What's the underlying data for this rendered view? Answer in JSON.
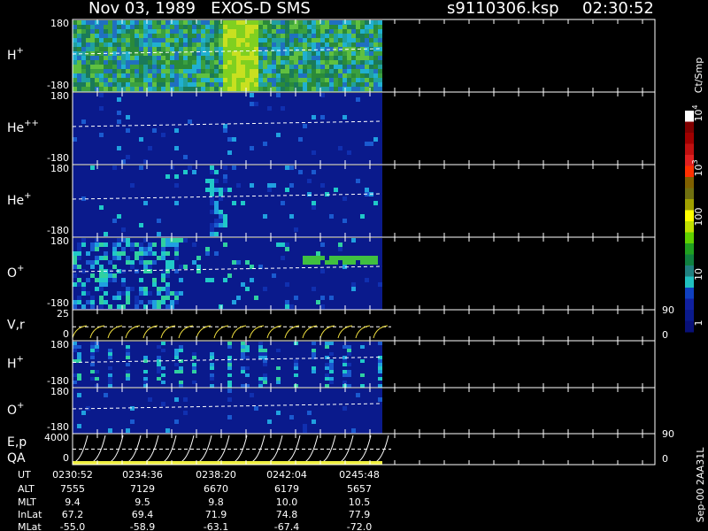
{
  "header": {
    "title": "Nov 03, 1989   EXOS-D SMS",
    "file": "s9110306.ksp",
    "time": "02:30:52"
  },
  "panels": [
    {
      "label": "H",
      "charge": "+",
      "top": "180",
      "bottom": "-180"
    },
    {
      "label": "He",
      "charge": "++",
      "top": "180",
      "bottom": "-180"
    },
    {
      "label": "He",
      "charge": "+",
      "top": "180",
      "bottom": "-180"
    },
    {
      "label": "O",
      "charge": "+",
      "top": "180",
      "bottom": "-180"
    },
    {
      "label": "V,r",
      "top": "25",
      "bottom": "0",
      "right_top": "90",
      "right_bottom": "0"
    },
    {
      "label": "H",
      "charge": "+",
      "top": "180",
      "bottom": "-180"
    },
    {
      "label": "O",
      "charge": "+",
      "top": "180",
      "bottom": "-180"
    },
    {
      "label": "E,p",
      "extra": "QA",
      "top": "4000",
      "bottom": "0",
      "right_top": "90",
      "right_bottom": "0"
    }
  ],
  "table": {
    "rows": [
      {
        "label": "UT",
        "values": [
          "0230:52",
          "0234:36",
          "0238:20",
          "0242:04",
          "0245:48"
        ]
      },
      {
        "label": "ALT",
        "values": [
          "7555",
          "7129",
          "6670",
          "6179",
          "5657"
        ]
      },
      {
        "label": "MLT",
        "values": [
          "9.4",
          "9.5",
          "9.8",
          "10.0",
          "10.5"
        ]
      },
      {
        "label": "InLat",
        "values": [
          "67.2",
          "69.4",
          "71.9",
          "74.8",
          "77.9"
        ]
      },
      {
        "label": "MLat",
        "values": [
          "-55.0",
          "-58.9",
          "-63.1",
          "-67.4",
          "-72.0"
        ]
      }
    ]
  },
  "colorbar": {
    "title": "Ct/Smp",
    "labels": [
      {
        "base": "10",
        "exp": "4"
      },
      {
        "base": "10",
        "exp": "3"
      },
      {
        "text": "100"
      },
      {
        "text": "10"
      },
      {
        "text": "1"
      }
    ]
  },
  "footer": "Sep-00  2AA31L"
}
